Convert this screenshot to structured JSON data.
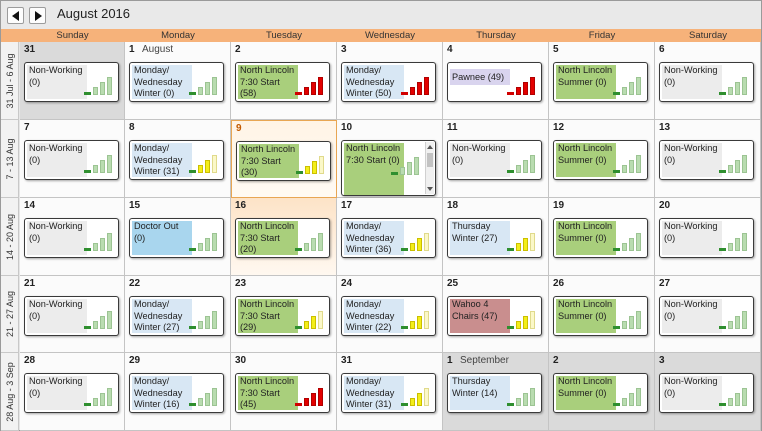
{
  "header": {
    "title": "August 2016"
  },
  "days_of_week": [
    "Sunday",
    "Monday",
    "Tuesday",
    "Wednesday",
    "Thursday",
    "Friday",
    "Saturday"
  ],
  "weeks": [
    {
      "label": "31 Jul - 6 Aug",
      "days": [
        {
          "num": "31",
          "month": "",
          "out": true,
          "appt": "Non-Working (0)",
          "color": "gray",
          "level": "green"
        },
        {
          "num": "1",
          "month": "August",
          "appt": "Monday/ Wednesday Winter (0)",
          "color": "blue",
          "level": "green"
        },
        {
          "num": "2",
          "appt": "North Lincoln 7:30 Start (58)",
          "color": "green",
          "level": "red"
        },
        {
          "num": "3",
          "appt": "Monday/ Wednesday Winter (50)",
          "color": "blue",
          "level": "red"
        },
        {
          "num": "4",
          "appt": "Pawnee (49)",
          "color": "lav",
          "level": "red"
        },
        {
          "num": "5",
          "appt": "North Lincoln Summer (0)",
          "color": "green",
          "level": "green"
        },
        {
          "num": "6",
          "appt": "Non-Working (0)",
          "color": "gray",
          "level": "green"
        }
      ]
    },
    {
      "label": "7 - 13 Aug",
      "days": [
        {
          "num": "7",
          "appt": "Non-Working (0)",
          "color": "gray",
          "level": "green"
        },
        {
          "num": "8",
          "appt": "Monday/ Wednesday Winter (31)",
          "color": "blue",
          "level": "yellow"
        },
        {
          "num": "9",
          "today": true,
          "appt": "North Lincoln 7:30 Start (30)",
          "color": "green",
          "level": "yellow"
        },
        {
          "num": "10",
          "appt": "North Lincoln 7:30 Start (0)",
          "color": "green",
          "level": "green",
          "scroll": true
        },
        {
          "num": "11",
          "appt": "Non-Working (0)",
          "color": "gray",
          "level": "green"
        },
        {
          "num": "12",
          "appt": "North Lincoln Summer (0)",
          "color": "green",
          "level": "green"
        },
        {
          "num": "13",
          "appt": "Non-Working (0)",
          "color": "gray",
          "level": "green"
        }
      ]
    },
    {
      "label": "14 - 20 Aug",
      "days": [
        {
          "num": "14",
          "appt": "Non-Working (0)",
          "color": "gray",
          "level": "green"
        },
        {
          "num": "15",
          "appt": "Doctor Out (0)",
          "color": "sky",
          "level": "green"
        },
        {
          "num": "16",
          "today_soft": true,
          "appt": "North Lincoln 7:30 Start (20)",
          "color": "green",
          "level": "green"
        },
        {
          "num": "17",
          "appt": "Monday/ Wednesday Winter (36)",
          "color": "blue",
          "level": "yellow"
        },
        {
          "num": "18",
          "appt": "Thursday Winter (27)",
          "color": "blue",
          "level": "yellow"
        },
        {
          "num": "19",
          "appt": "North Lincoln Summer (0)",
          "color": "green",
          "level": "green"
        },
        {
          "num": "20",
          "appt": "Non-Working (0)",
          "color": "gray",
          "level": "green"
        }
      ]
    },
    {
      "label": "21 - 27 Aug",
      "days": [
        {
          "num": "21",
          "appt": "Non-Working (0)",
          "color": "gray",
          "level": "green"
        },
        {
          "num": "22",
          "appt": "Monday/ Wednesday Winter (27)",
          "color": "blue",
          "level": "green"
        },
        {
          "num": "23",
          "appt": "North Lincoln 7:30 Start (29)",
          "color": "green",
          "level": "yellow"
        },
        {
          "num": "24",
          "appt": "Monday/ Wednesday Winter (22)",
          "color": "blue",
          "level": "yellow"
        },
        {
          "num": "25",
          "appt": "Wahoo 4 Chairs (47)",
          "color": "rose",
          "level": "yellow"
        },
        {
          "num": "26",
          "appt": "North Lincoln Summer (0)",
          "color": "green",
          "level": "green"
        },
        {
          "num": "27",
          "appt": "Non-Working (0)",
          "color": "gray",
          "level": "green"
        }
      ]
    },
    {
      "label": "28 Aug - 3 Sep",
      "days": [
        {
          "num": "28",
          "appt": "Non-Working (0)",
          "color": "gray",
          "level": "green"
        },
        {
          "num": "29",
          "appt": "Monday/ Wednesday Winter (16)",
          "color": "blue",
          "level": "green"
        },
        {
          "num": "30",
          "appt": "North Lincoln 7:30 Start (45)",
          "color": "green",
          "level": "red"
        },
        {
          "num": "31",
          "appt": "Monday/ Wednesday Winter (31)",
          "color": "blue",
          "level": "yellow"
        },
        {
          "num": "1",
          "month": "September",
          "out": true,
          "appt": "Thursday Winter (14)",
          "color": "blue",
          "level": "green"
        },
        {
          "num": "2",
          "out": true,
          "appt": "North Lincoln Summer (0)",
          "color": "green",
          "level": "green"
        },
        {
          "num": "3",
          "out": true,
          "appt": "Non-Working (0)",
          "color": "gray",
          "level": "green"
        }
      ]
    }
  ]
}
